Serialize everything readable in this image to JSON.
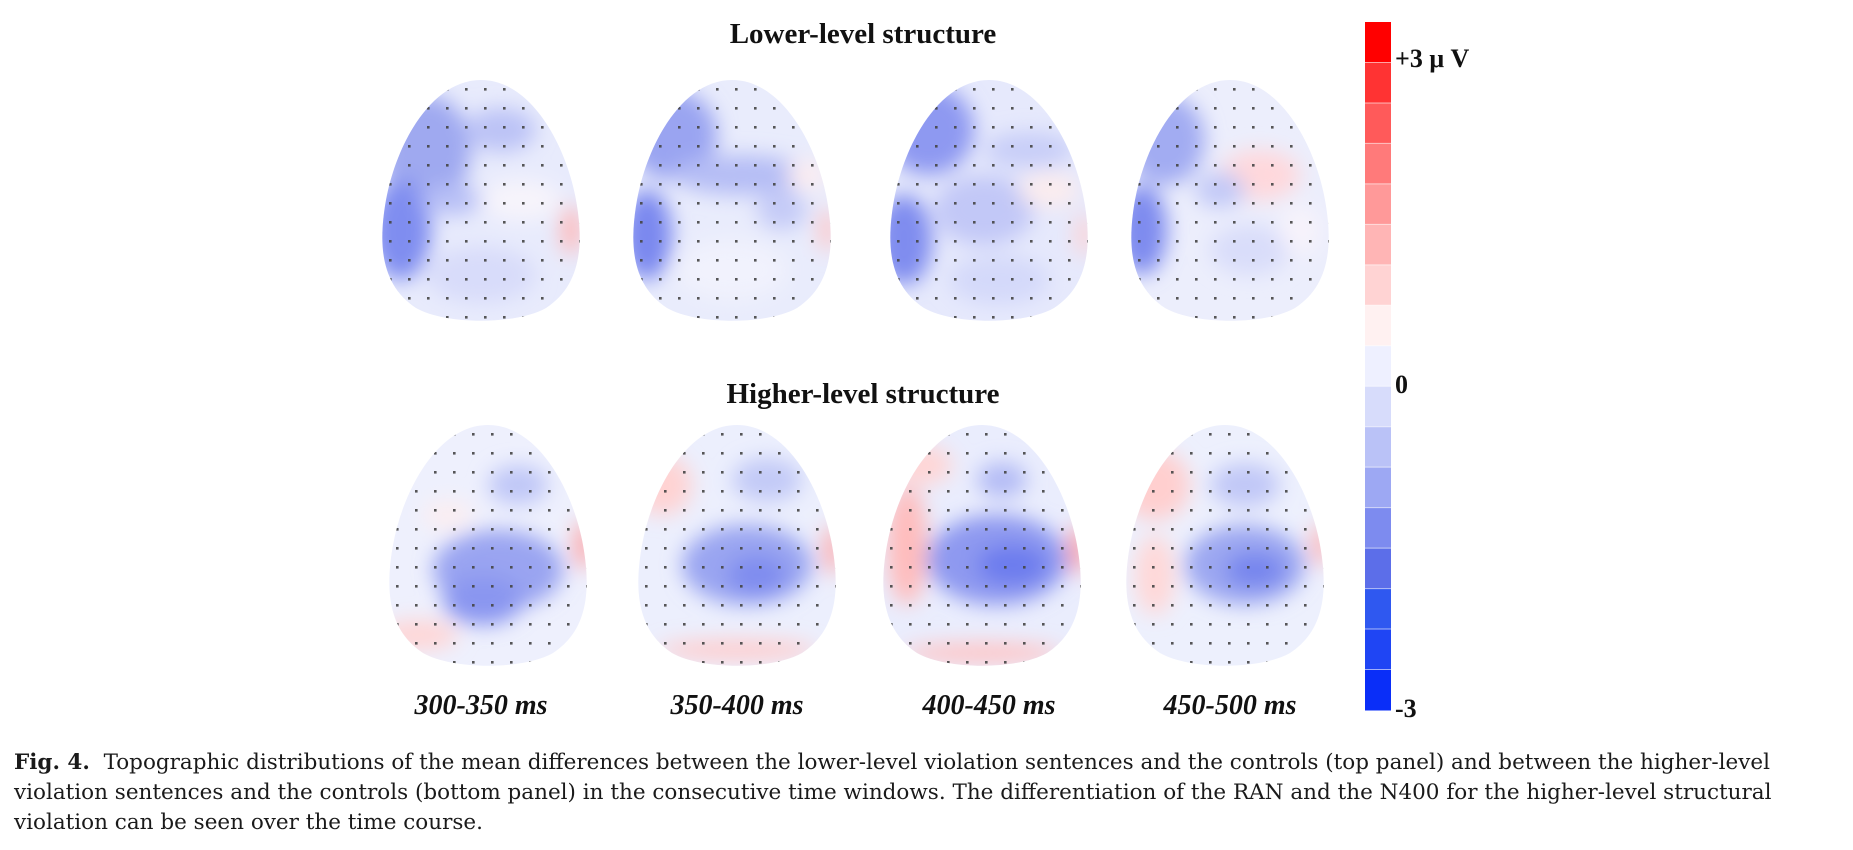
{
  "panels": {
    "top_title": "Lower-level structure",
    "bottom_title": "Higher-level structure"
  },
  "time_windows": [
    "300-350 ms",
    "350-400 ms",
    "400-450 ms",
    "450-500 ms"
  ],
  "color_scale": {
    "max_label": "+3 μ V",
    "mid_label": "0",
    "min_label": "-3",
    "colors": [
      "#ff0000",
      "#ff3333",
      "#ff5a5a",
      "#ff7a7a",
      "#ff9999",
      "#ffb5b5",
      "#ffd3d3",
      "#fff1f1",
      "#eef0ff",
      "#d7dcfb",
      "#bac2f7",
      "#9da8f3",
      "#7d8bef",
      "#5c6ee9",
      "#2f58f0",
      "#1f45f4",
      "#0a2ef8"
    ]
  },
  "caption": {
    "label": "Fig. 4.",
    "text": "Topographic distributions of the mean differences between the lower-level violation sentences and the controls (top panel) and between the higher-level violation sentences and the controls (bottom panel) in the consecutive time windows. The differentiation of the RAN and the N400 for the higher-level structural violation can be seen over the time course."
  }
}
